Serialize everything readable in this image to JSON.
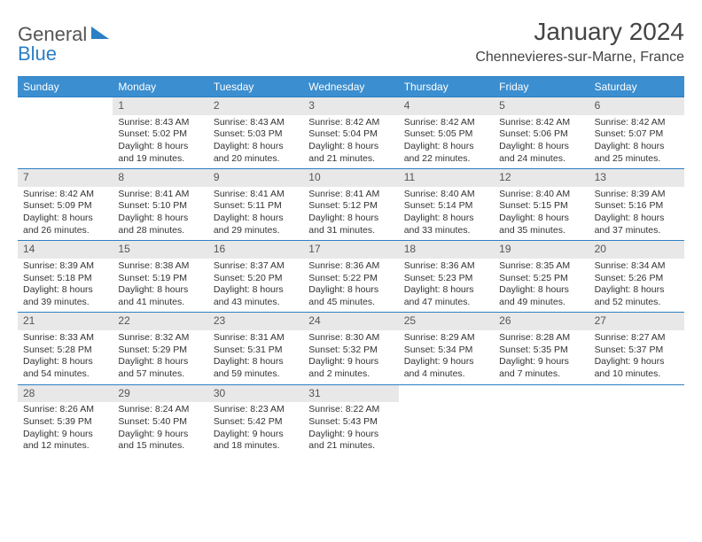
{
  "logo": {
    "part1": "General",
    "part2": "Blue"
  },
  "title": "January 2024",
  "location": "Chennevieres-sur-Marne, France",
  "colors": {
    "header_bg": "#3b8ecf",
    "border": "#2b7fc4",
    "daynum_bg": "#e8e8e8",
    "text": "#333333"
  },
  "weekdays": [
    "Sunday",
    "Monday",
    "Tuesday",
    "Wednesday",
    "Thursday",
    "Friday",
    "Saturday"
  ],
  "leading_blanks": 1,
  "days": [
    {
      "n": "1",
      "sunrise": "8:43 AM",
      "sunset": "5:02 PM",
      "daylight": "8 hours and 19 minutes."
    },
    {
      "n": "2",
      "sunrise": "8:43 AM",
      "sunset": "5:03 PM",
      "daylight": "8 hours and 20 minutes."
    },
    {
      "n": "3",
      "sunrise": "8:42 AM",
      "sunset": "5:04 PM",
      "daylight": "8 hours and 21 minutes."
    },
    {
      "n": "4",
      "sunrise": "8:42 AM",
      "sunset": "5:05 PM",
      "daylight": "8 hours and 22 minutes."
    },
    {
      "n": "5",
      "sunrise": "8:42 AM",
      "sunset": "5:06 PM",
      "daylight": "8 hours and 24 minutes."
    },
    {
      "n": "6",
      "sunrise": "8:42 AM",
      "sunset": "5:07 PM",
      "daylight": "8 hours and 25 minutes."
    },
    {
      "n": "7",
      "sunrise": "8:42 AM",
      "sunset": "5:09 PM",
      "daylight": "8 hours and 26 minutes."
    },
    {
      "n": "8",
      "sunrise": "8:41 AM",
      "sunset": "5:10 PM",
      "daylight": "8 hours and 28 minutes."
    },
    {
      "n": "9",
      "sunrise": "8:41 AM",
      "sunset": "5:11 PM",
      "daylight": "8 hours and 29 minutes."
    },
    {
      "n": "10",
      "sunrise": "8:41 AM",
      "sunset": "5:12 PM",
      "daylight": "8 hours and 31 minutes."
    },
    {
      "n": "11",
      "sunrise": "8:40 AM",
      "sunset": "5:14 PM",
      "daylight": "8 hours and 33 minutes."
    },
    {
      "n": "12",
      "sunrise": "8:40 AM",
      "sunset": "5:15 PM",
      "daylight": "8 hours and 35 minutes."
    },
    {
      "n": "13",
      "sunrise": "8:39 AM",
      "sunset": "5:16 PM",
      "daylight": "8 hours and 37 minutes."
    },
    {
      "n": "14",
      "sunrise": "8:39 AM",
      "sunset": "5:18 PM",
      "daylight": "8 hours and 39 minutes."
    },
    {
      "n": "15",
      "sunrise": "8:38 AM",
      "sunset": "5:19 PM",
      "daylight": "8 hours and 41 minutes."
    },
    {
      "n": "16",
      "sunrise": "8:37 AM",
      "sunset": "5:20 PM",
      "daylight": "8 hours and 43 minutes."
    },
    {
      "n": "17",
      "sunrise": "8:36 AM",
      "sunset": "5:22 PM",
      "daylight": "8 hours and 45 minutes."
    },
    {
      "n": "18",
      "sunrise": "8:36 AM",
      "sunset": "5:23 PM",
      "daylight": "8 hours and 47 minutes."
    },
    {
      "n": "19",
      "sunrise": "8:35 AM",
      "sunset": "5:25 PM",
      "daylight": "8 hours and 49 minutes."
    },
    {
      "n": "20",
      "sunrise": "8:34 AM",
      "sunset": "5:26 PM",
      "daylight": "8 hours and 52 minutes."
    },
    {
      "n": "21",
      "sunrise": "8:33 AM",
      "sunset": "5:28 PM",
      "daylight": "8 hours and 54 minutes."
    },
    {
      "n": "22",
      "sunrise": "8:32 AM",
      "sunset": "5:29 PM",
      "daylight": "8 hours and 57 minutes."
    },
    {
      "n": "23",
      "sunrise": "8:31 AM",
      "sunset": "5:31 PM",
      "daylight": "8 hours and 59 minutes."
    },
    {
      "n": "24",
      "sunrise": "8:30 AM",
      "sunset": "5:32 PM",
      "daylight": "9 hours and 2 minutes."
    },
    {
      "n": "25",
      "sunrise": "8:29 AM",
      "sunset": "5:34 PM",
      "daylight": "9 hours and 4 minutes."
    },
    {
      "n": "26",
      "sunrise": "8:28 AM",
      "sunset": "5:35 PM",
      "daylight": "9 hours and 7 minutes."
    },
    {
      "n": "27",
      "sunrise": "8:27 AM",
      "sunset": "5:37 PM",
      "daylight": "9 hours and 10 minutes."
    },
    {
      "n": "28",
      "sunrise": "8:26 AM",
      "sunset": "5:39 PM",
      "daylight": "9 hours and 12 minutes."
    },
    {
      "n": "29",
      "sunrise": "8:24 AM",
      "sunset": "5:40 PM",
      "daylight": "9 hours and 15 minutes."
    },
    {
      "n": "30",
      "sunrise": "8:23 AM",
      "sunset": "5:42 PM",
      "daylight": "9 hours and 18 minutes."
    },
    {
      "n": "31",
      "sunrise": "8:22 AM",
      "sunset": "5:43 PM",
      "daylight": "9 hours and 21 minutes."
    }
  ],
  "labels": {
    "sunrise": "Sunrise:",
    "sunset": "Sunset:",
    "daylight": "Daylight:"
  }
}
